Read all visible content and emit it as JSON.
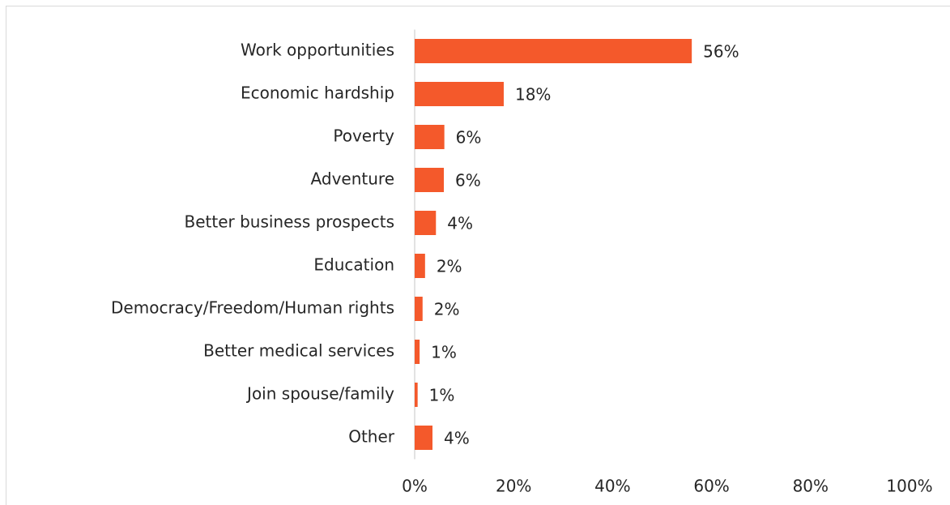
{
  "chart_data": {
    "type": "bar",
    "orientation": "horizontal",
    "categories": [
      "Work opportunities",
      "Economic hardship",
      "Poverty",
      "Adventure",
      "Better business prospects",
      "Education",
      "Democracy/Freedom/Human rights",
      "Better medical services",
      "Join spouse/family",
      "Other"
    ],
    "values": [
      56,
      18,
      6,
      5.9,
      4.3,
      2.1,
      1.6,
      1,
      0.6,
      3.6
    ],
    "value_labels": [
      "56%",
      "18%",
      "6%",
      "6%",
      "4%",
      "2%",
      "2%",
      "1%",
      "1%",
      "4%"
    ],
    "color": "#f4592b",
    "xlim": [
      0,
      100
    ],
    "xticks": [
      {
        "value": 0,
        "label": "0%"
      },
      {
        "value": 20,
        "label": "20%"
      },
      {
        "value": 40,
        "label": "40%"
      },
      {
        "value": 60,
        "label": "60%"
      },
      {
        "value": 80,
        "label": "80%"
      },
      {
        "value": 100,
        "label": "100%"
      }
    ],
    "grid": false
  }
}
